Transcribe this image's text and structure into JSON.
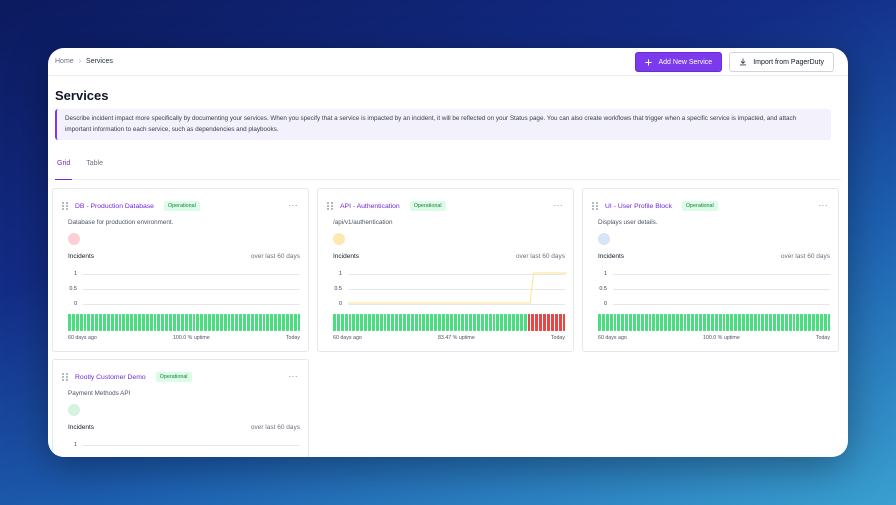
{
  "breadcrumb": {
    "home": "Home",
    "current": "Services",
    "separator": "›"
  },
  "toolbar": {
    "add_label": "Add New Service",
    "import_label": "Import from PagerDuty"
  },
  "page": {
    "title": "Services",
    "info_text": "Describe incident impact more specifically by documenting your services. When you specify that a service is impacted by an incident, it will be reflected on your Status page. You can also create workflows that trigger when a specific service is impacted, and attach important information to each service, such as dependencies and playbooks."
  },
  "tabs": [
    {
      "label": "Grid",
      "active": true
    },
    {
      "label": "Table",
      "active": false
    }
  ],
  "colors": {
    "accent": "#7c3aed",
    "bar_ok": "#4ade80",
    "bar_incident": "#ef4444",
    "incident_line": "#fde68a"
  },
  "cards": [
    {
      "name": "DB - Production Database",
      "status": "Operational",
      "description": "Database for production environment.",
      "dot_color": "#fbcfd4",
      "incidents_label": "Incidents",
      "period_label": "over last 60 days",
      "y_ticks": [
        "1",
        "0.5",
        "0"
      ],
      "start_label": "60 days ago",
      "uptime_label": "100.0 % uptime",
      "end_label": "Today",
      "incident_days": [],
      "incident_counts": []
    },
    {
      "name": "API - Authentication",
      "status": "Operational",
      "description": "/api/v1/authentication",
      "dot_color": "#fde9b0",
      "incidents_label": "Incidents",
      "period_label": "over last 60 days",
      "y_ticks": [
        "1",
        "0.5",
        "0"
      ],
      "start_label": "60 days ago",
      "uptime_label": "83.47 % uptime",
      "end_label": "Today",
      "incident_days": [
        50,
        51,
        52,
        53,
        54,
        55,
        56,
        57,
        58,
        59
      ],
      "incident_counts": [
        0,
        0,
        0,
        0,
        0,
        0,
        0,
        0,
        0,
        0,
        0,
        0,
        0,
        0,
        0,
        0,
        0,
        0,
        0,
        0,
        0,
        0,
        0,
        0,
        0,
        0,
        0,
        0,
        0,
        0,
        0,
        0,
        0,
        0,
        0,
        0,
        0,
        0,
        0,
        0,
        0,
        0,
        0,
        0,
        0,
        0,
        0,
        0,
        0,
        0,
        1,
        1,
        1,
        1,
        1,
        1,
        1,
        1,
        1,
        1
      ]
    },
    {
      "name": "UI - User Profile Block",
      "status": "Operational",
      "description": "Displays user details.",
      "dot_color": "#d6e6f7",
      "incidents_label": "Incidents",
      "period_label": "over last 60 days",
      "y_ticks": [
        "1",
        "0.5",
        "0"
      ],
      "start_label": "60 days ago",
      "uptime_label": "100.0 % uptime",
      "end_label": "Today",
      "incident_days": [],
      "incident_counts": []
    },
    {
      "name": "Rootly Customer Demo",
      "status": "Operational",
      "description": "Payment Methods API",
      "dot_color": "#d5f3e0",
      "incidents_label": "Incidents",
      "period_label": "over last 60 days",
      "y_ticks": [
        "1"
      ],
      "start_label": "",
      "uptime_label": "",
      "end_label": "",
      "incident_days": [],
      "incident_counts": []
    }
  ]
}
